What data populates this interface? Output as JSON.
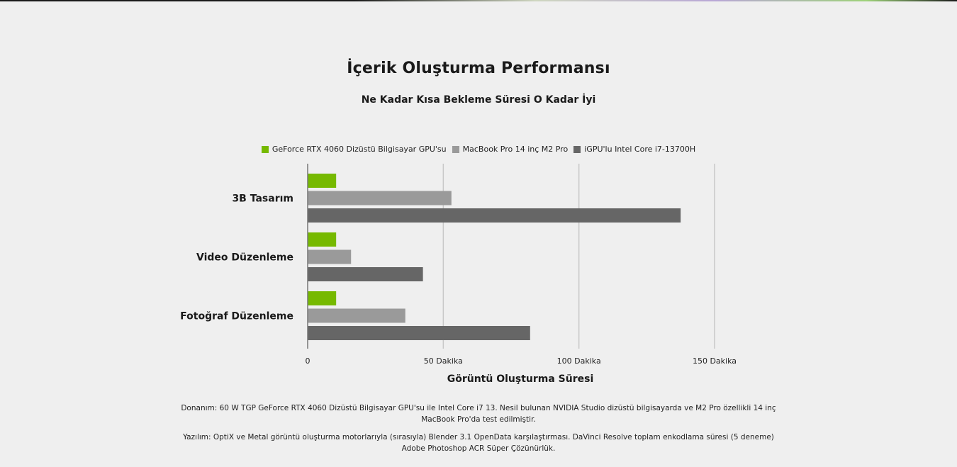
{
  "title": "İçerik Oluşturma Performansı",
  "subtitle": "Ne Kadar Kısa Bekleme Süresi O Kadar İyi",
  "colors": {
    "background": "#efefef",
    "series": [
      "#76b900",
      "#9a9a9a",
      "#666666"
    ],
    "grid": "#c8c8c8"
  },
  "chart_data": {
    "type": "bar",
    "orientation": "horizontal",
    "categories": [
      "3B Tasarım",
      "Video Düzenleme",
      "Fotoğraf Düzenleme"
    ],
    "series": [
      {
        "name": "GeForce RTX 4060 Dizüstü Bilgisayar GPU'su",
        "values": [
          10.5,
          10.5,
          10.5
        ]
      },
      {
        "name": "MacBook Pro 14 inç M2 Pro",
        "values": [
          53,
          16,
          36
        ]
      },
      {
        "name": "iGPU'lu Intel Core i7-13700H",
        "values": [
          137.5,
          42.5,
          82
        ]
      }
    ],
    "xlabel": "Görüntü Oluşturma Süresi",
    "ylabel": "",
    "xlim": [
      0,
      150
    ],
    "xticks": [
      {
        "value": 0,
        "label": "0"
      },
      {
        "value": 50,
        "label": "50 Dakika"
      },
      {
        "value": 100,
        "label": "100 Dakika"
      },
      {
        "value": 150,
        "label": "150 Dakika"
      }
    ],
    "grid": true,
    "legend_position": "top"
  },
  "footnotes": [
    "Donanım: 60 W TGP GeForce RTX 4060 Dizüstü Bilgisayar GPU'su ile Intel Core i7 13. Nesil bulunan NVIDIA Studio dizüstü bilgisayarda ve M2 Pro özellikli 14 inç MacBook Pro'da test edilmiştir.",
    "Yazılım: OptiX ve Metal görüntü oluşturma motorlarıyla (sırasıyla) Blender 3.1 OpenData karşılaştırması. DaVinci Resolve toplam enkodlama süresi (5 deneme) Adobe Photoshop ACR Süper Çözünürlük."
  ]
}
